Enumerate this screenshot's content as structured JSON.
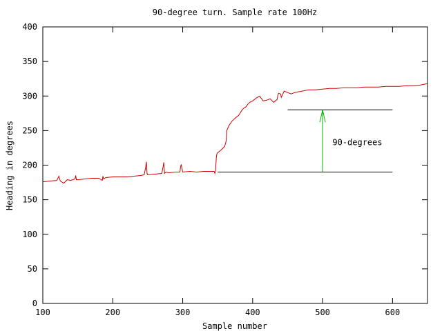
{
  "chart_data": {
    "type": "line",
    "title": "90-degree turn. Sample rate 100Hz",
    "xlabel": "Sample number",
    "ylabel": "Heading in degrees",
    "xlim": [
      100,
      650
    ],
    "ylim": [
      0,
      400
    ],
    "x_ticks": [
      100,
      200,
      300,
      400,
      500,
      600
    ],
    "y_ticks": [
      0,
      50,
      100,
      150,
      200,
      250,
      300,
      350,
      400
    ],
    "grid": false,
    "legend": "none",
    "series": [
      {
        "color": "#cc0000",
        "x": [
          100,
          110,
          120,
          123,
          125,
          130,
          135,
          140,
          146,
          147,
          148,
          150,
          160,
          170,
          180,
          185,
          186,
          187,
          190,
          200,
          210,
          220,
          230,
          240,
          245,
          247,
          248,
          249,
          250,
          260,
          270,
          272,
          273,
          274,
          276,
          280,
          290,
          296,
          297,
          298,
          300,
          310,
          320,
          330,
          340,
          345,
          346,
          347,
          348,
          349,
          350,
          355,
          360,
          362,
          363,
          366,
          368,
          370,
          375,
          380,
          385,
          388,
          390,
          393,
          396,
          400,
          405,
          410,
          415,
          420,
          425,
          430,
          435,
          436,
          437,
          440,
          441,
          445,
          450,
          455,
          460,
          470,
          480,
          490,
          500,
          510,
          520,
          530,
          540,
          550,
          560,
          570,
          580,
          590,
          600,
          610,
          620,
          630,
          640,
          650
        ],
        "y": [
          176,
          177,
          178,
          184,
          177,
          174,
          179,
          178,
          180,
          185,
          179,
          179,
          180,
          181,
          181,
          178,
          184,
          180,
          182,
          183,
          183,
          183,
          184,
          185,
          186,
          197,
          205,
          188,
          186,
          187,
          188,
          198,
          204,
          188,
          190,
          189,
          190,
          190,
          198,
          201,
          190,
          191,
          190,
          191,
          191,
          191,
          188,
          192,
          211,
          217,
          218,
          222,
          227,
          234,
          250,
          257,
          260,
          263,
          268,
          272,
          280,
          283,
          284,
          288,
          291,
          293,
          297,
          300,
          293,
          294,
          296,
          291,
          295,
          301,
          304,
          303,
          298,
          307,
          305,
          303,
          305,
          307,
          309,
          309,
          310,
          311,
          311,
          312,
          312,
          312,
          313,
          313,
          313,
          314,
          314,
          314,
          315,
          315,
          316,
          318
        ]
      }
    ],
    "annotations": {
      "reference_lines": [
        {
          "x_start": 350,
          "x_end": 600,
          "y": 190
        },
        {
          "x_start": 450,
          "x_end": 600,
          "y": 280
        }
      ],
      "arrow": {
        "x": 500,
        "y_from": 190,
        "y_to": 280,
        "color": "#00b000"
      },
      "label": {
        "text": "90-degrees",
        "x": 520,
        "y": 229
      }
    }
  }
}
